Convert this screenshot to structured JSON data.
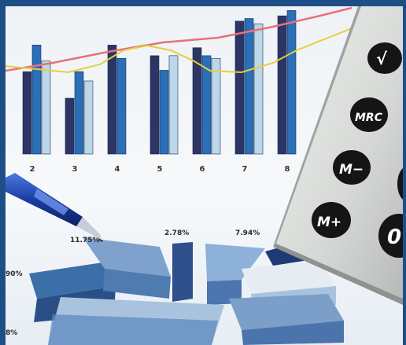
{
  "colors": {
    "frame": "#1d4f86",
    "bar_dark": "#2b3566",
    "bar_mid": "#2a6fb8",
    "bar_light": "#bcd7ea",
    "line_red": "#e8707a",
    "line_yellow": "#e6cf3a",
    "pen": "#1a3a9e",
    "pie_blue": "#3c6ea8",
    "pie_light": "#a9c3df",
    "calculator": "#d9dbd8",
    "key_black": "#151515"
  },
  "bar_chart": {
    "x_ticks": [
      "2",
      "3",
      "4",
      "5",
      "6",
      "7",
      "8"
    ],
    "groups": [
      {
        "tick": "2",
        "values": [
          62,
          82,
          70
        ]
      },
      {
        "tick": "3",
        "values": [
          42,
          62,
          55
        ]
      },
      {
        "tick": "4",
        "values": [
          82,
          72,
          0
        ]
      },
      {
        "tick": "5",
        "values": [
          74,
          63,
          74
        ]
      },
      {
        "tick": "6",
        "values": [
          80,
          74,
          72
        ]
      },
      {
        "tick": "7",
        "values": [
          100,
          102,
          98
        ]
      },
      {
        "tick": "8",
        "values": [
          104,
          108,
          0
        ]
      }
    ]
  },
  "pie_chart": {
    "labels": [
      "11.75%",
      "2.78%",
      "7.94%",
      "90%",
      "8%"
    ]
  },
  "calculator": {
    "keys": [
      "√",
      "MRC",
      "M−",
      "M+",
      "0"
    ]
  },
  "icons": [
    "pen-icon",
    "calculator-icon"
  ]
}
